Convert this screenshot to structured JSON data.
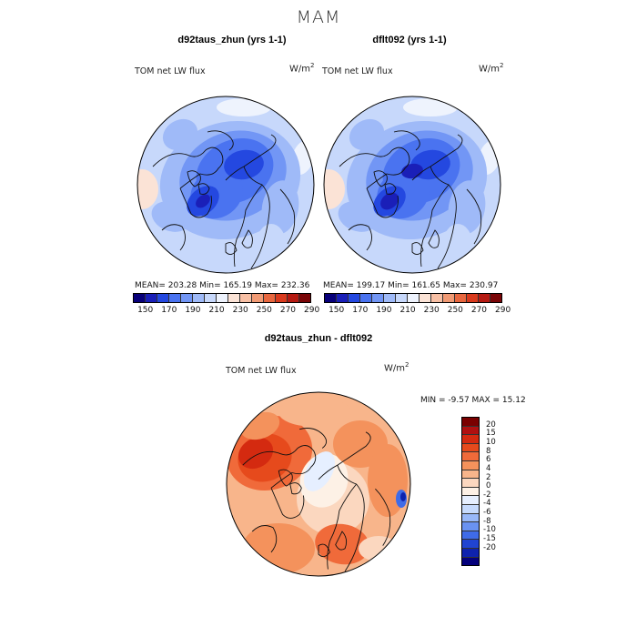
{
  "title": "MAM",
  "colors": {
    "abs_scale": [
      "#08007a",
      "#1a1fb8",
      "#2448e0",
      "#4a73f0",
      "#7296f5",
      "#9fbaf8",
      "#c7d8fb",
      "#eef3fd",
      "#fbe3d6",
      "#f8c0a5",
      "#f19a74",
      "#e8673f",
      "#d93a1d",
      "#b51a12",
      "#7a0608"
    ],
    "diff_scale": [
      "#7a0000",
      "#b01010",
      "#d42a10",
      "#e64a1c",
      "#f06a3a",
      "#f4925c",
      "#f8b58b",
      "#fbd7bf",
      "#fdf1e6",
      "#e6efff",
      "#c6dafd",
      "#98b8f9",
      "#6a92f2",
      "#3f6be8",
      "#2044d2",
      "#0e22ae",
      "#04007c"
    ]
  },
  "chart_data": [
    {
      "type": "heatmap",
      "title": "d92taus_zhun (yrs 1-1)",
      "subtitle": "TOM net LW flux",
      "units": "W/m²",
      "projection": "polar stereographic (Arctic)",
      "stats": {
        "mean": 203.28,
        "min": 165.19,
        "max": 232.36
      },
      "stats_text": "MEAN=  203.28    Min=  165.19    Max=  232.36",
      "colorbar": {
        "orientation": "horizontal",
        "ticks": [
          "150",
          "170",
          "190",
          "210",
          "230",
          "250",
          "270",
          "290"
        ]
      }
    },
    {
      "type": "heatmap",
      "title": "dflt092 (yrs 1-1)",
      "subtitle": "TOM net LW flux",
      "units": "W/m²",
      "projection": "polar stereographic (Arctic)",
      "stats": {
        "mean": 199.17,
        "min": 161.65,
        "max": 230.97
      },
      "stats_text": "MEAN=  199.17    Min=  161.65    Max=  230.97",
      "colorbar": {
        "orientation": "horizontal",
        "ticks": [
          "150",
          "170",
          "190",
          "210",
          "230",
          "250",
          "270",
          "290"
        ]
      }
    },
    {
      "type": "heatmap",
      "title": "d92taus_zhun - dflt092",
      "subtitle": "TOM net LW flux",
      "units": "W/m²",
      "projection": "polar stereographic (Arctic)",
      "stats": {
        "min": -9.57,
        "max": 15.12
      },
      "stats_text": "MIN =   -9.57  MAX =   15.12",
      "colorbar": {
        "orientation": "vertical",
        "ticks": [
          "20",
          "15",
          "10",
          "8",
          "6",
          "4",
          "2",
          "0",
          "-2",
          "-4",
          "-6",
          "-8",
          "-10",
          "-15",
          "-20"
        ]
      }
    }
  ],
  "labels": {
    "subtitle": "TOM net LW flux",
    "units_prefix": "W/m",
    "units_exp": "2"
  }
}
